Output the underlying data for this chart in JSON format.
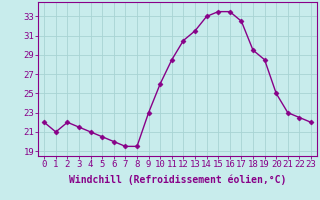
{
  "x": [
    0,
    1,
    2,
    3,
    4,
    5,
    6,
    7,
    8,
    9,
    10,
    11,
    12,
    13,
    14,
    15,
    16,
    17,
    18,
    19,
    20,
    21,
    22,
    23
  ],
  "y": [
    22.0,
    21.0,
    22.0,
    21.5,
    21.0,
    20.5,
    20.0,
    19.5,
    19.5,
    23.0,
    26.0,
    28.5,
    30.5,
    31.5,
    33.0,
    33.5,
    33.5,
    32.5,
    29.5,
    28.5,
    25.0,
    23.0,
    22.5,
    22.0
  ],
  "line_color": "#880088",
  "marker": "D",
  "marker_size": 2.5,
  "xlabel": "Windchill (Refroidissement éolien,°C)",
  "xlabel_fontsize": 7,
  "ylabel_ticks": [
    19,
    21,
    23,
    25,
    27,
    29,
    31,
    33
  ],
  "xlim": [
    -0.5,
    23.5
  ],
  "ylim": [
    18.5,
    34.5
  ],
  "bg_color": "#c8ecec",
  "grid_color": "#a8d4d4",
  "tick_fontsize": 6.5,
  "line_width": 1.0
}
